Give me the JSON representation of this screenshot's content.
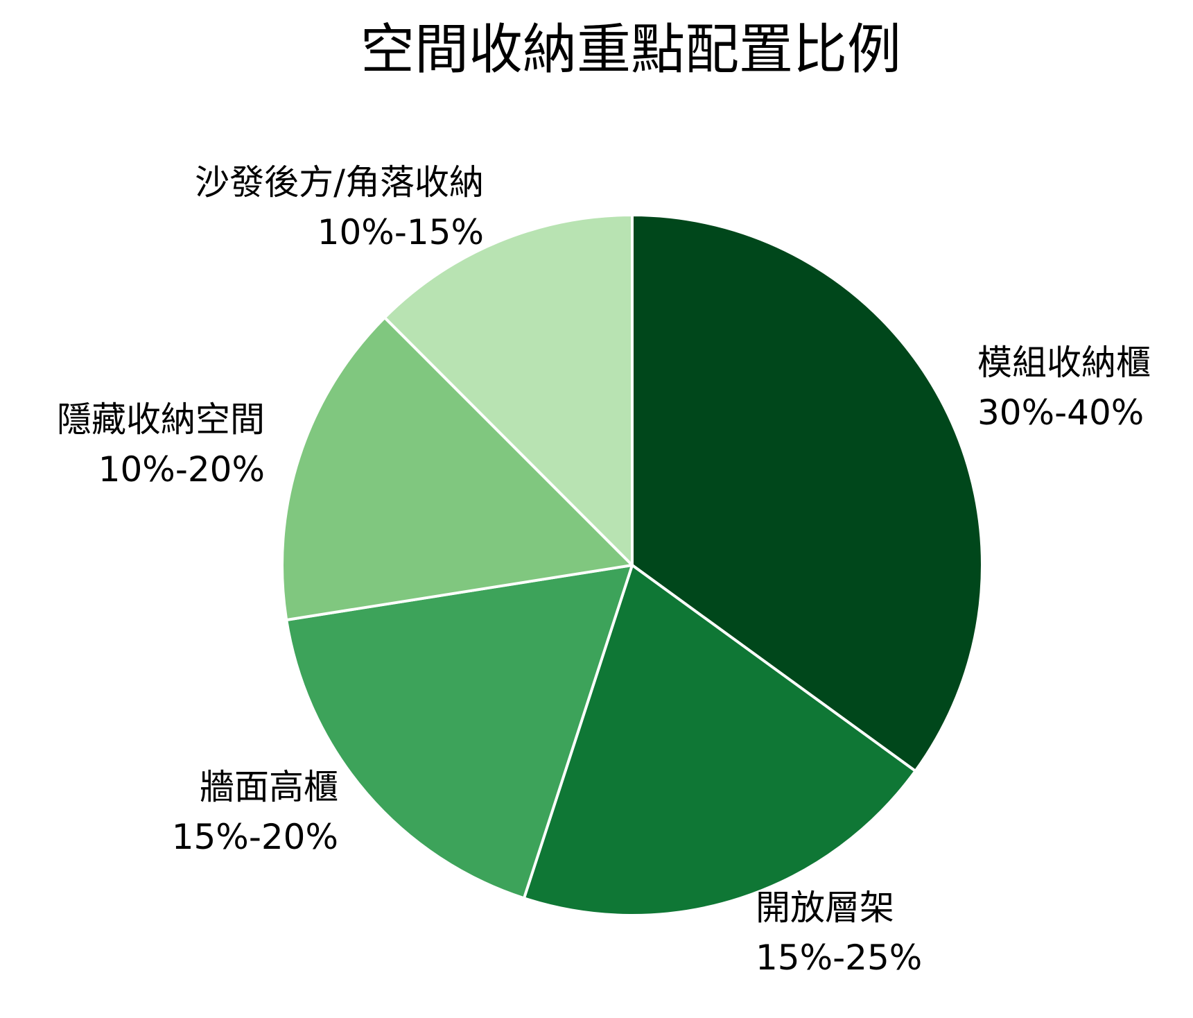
{
  "chart_data": {
    "type": "pie",
    "title": "空間收納重點配置比例",
    "start_angle_deg": 0,
    "direction": "clockwise",
    "slices": [
      {
        "label": "模組收納櫃",
        "range_text": "30%-40%",
        "value": 35,
        "color": "#00471b"
      },
      {
        "label": "開放層架",
        "range_text": "15%-25%",
        "value": 20,
        "color": "#0f7735"
      },
      {
        "label": "牆面高櫃",
        "range_text": "15%-20%",
        "value": 17.5,
        "color": "#3da35a"
      },
      {
        "label": "隱藏收納空間",
        "range_text": "10%-20%",
        "value": 15,
        "color": "#80c77f"
      },
      {
        "label": "沙發後方/角落收納",
        "range_text": "10%-15%",
        "value": 12.5,
        "color": "#b8e3b2"
      }
    ]
  }
}
